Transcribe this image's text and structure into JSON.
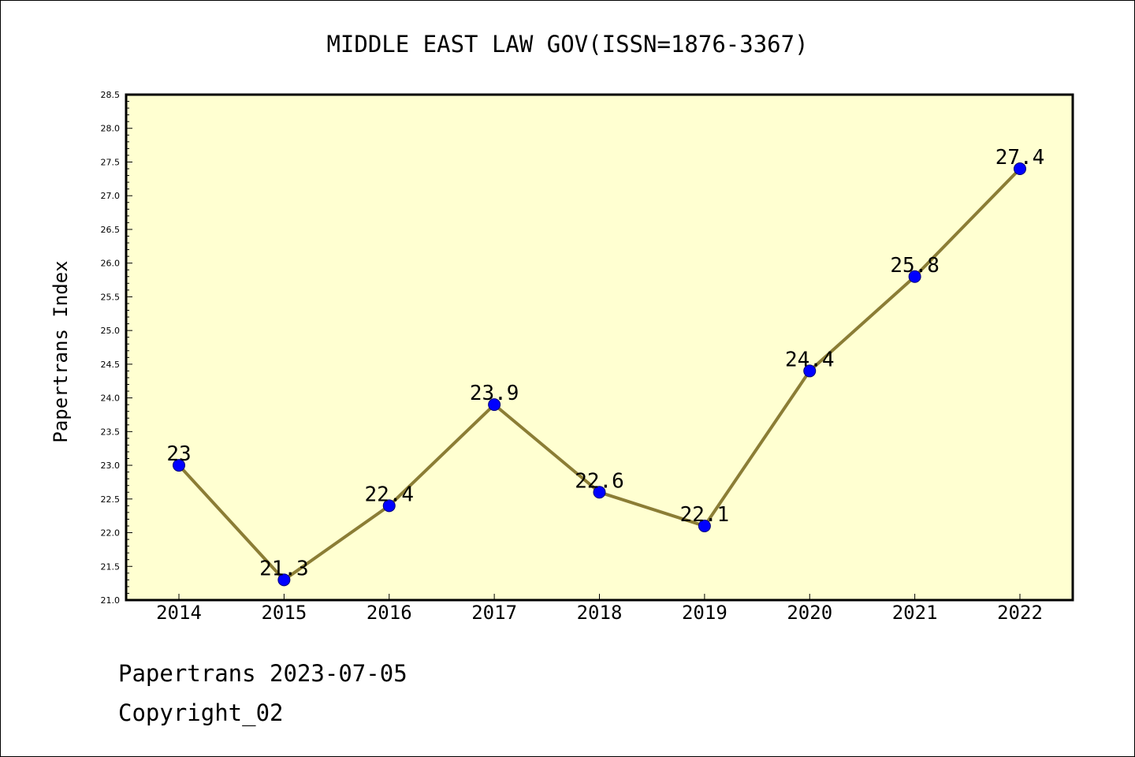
{
  "colors": {
    "plot_background": "#FFFFD1",
    "line": "#8B7D35",
    "marker_fill": "#0000FF",
    "marker_stroke": "#00007A",
    "text": "#000000"
  },
  "footer": {
    "source_line": "Papertrans 2023-07-05",
    "copyright_line": "Copyright_02"
  },
  "chart_data": {
    "type": "line",
    "title": "MIDDLE EAST LAW GOV(ISSN=1876-3367)",
    "xlabel": "",
    "ylabel": "Papertrans Index",
    "categories": [
      "2014",
      "2015",
      "2016",
      "2017",
      "2018",
      "2019",
      "2020",
      "2021",
      "2022"
    ],
    "values": [
      23,
      21.3,
      22.4,
      23.9,
      22.6,
      22.1,
      24.4,
      25.8,
      27.4
    ],
    "data_labels": [
      "23",
      "21.3",
      "22.4",
      "23.9",
      "22.6",
      "22.1",
      "24.4",
      "25.8",
      "27.4"
    ],
    "ylim": [
      21.0,
      28.5
    ],
    "yticks": [
      "21.0",
      "21.5",
      "22.0",
      "22.5",
      "23.0",
      "23.5",
      "24.0",
      "24.5",
      "25.0",
      "25.5",
      "26.0",
      "26.5",
      "27.0",
      "27.5",
      "28.0",
      "28.5"
    ],
    "grid": false,
    "legend": "none"
  }
}
